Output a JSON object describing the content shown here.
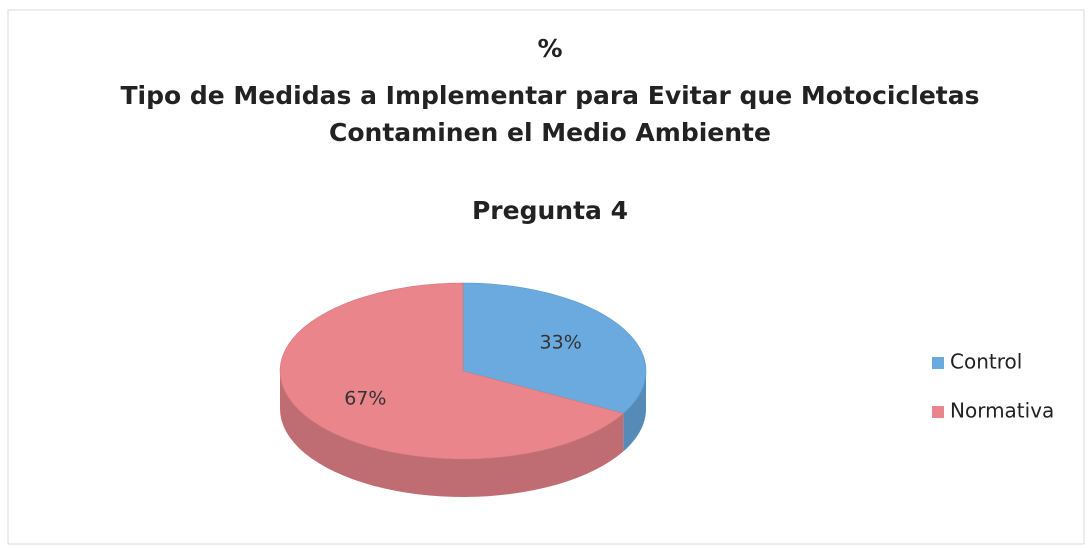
{
  "chart_data": {
    "type": "pie3d",
    "title": [
      "%",
      "Tipo de Medidas a Implementar para Evitar que Motocicletas",
      "Contaminen el Medio Ambiente"
    ],
    "subtitle": "Pregunta 4",
    "categories": [
      "Control",
      "Normativa"
    ],
    "values": [
      33,
      67
    ],
    "value_labels": [
      "33%",
      "67%"
    ],
    "colors": [
      "#6aaadf",
      "#e9858b"
    ],
    "legend": "right"
  }
}
